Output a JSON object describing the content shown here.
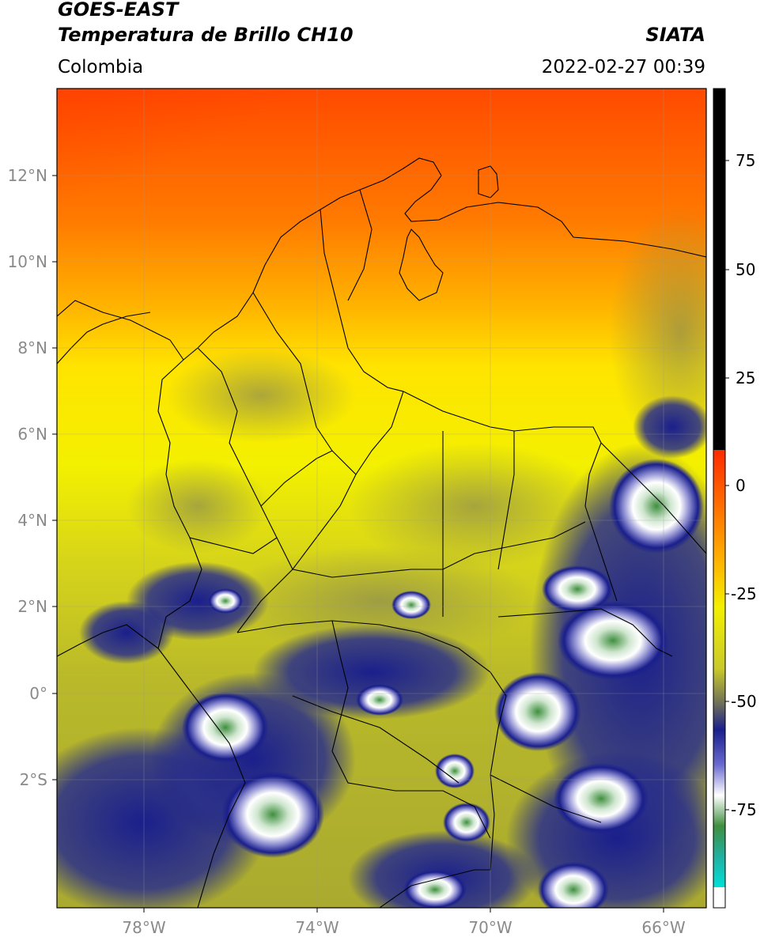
{
  "header": {
    "title_line1": "GOES-EAST",
    "title_line2": "Temperatura de Brillo CH10",
    "region": "Colombia",
    "source": "SIATA",
    "datetime": "2022-02-27 00:39"
  },
  "axes": {
    "lat_labels": [
      "12°N",
      "10°N",
      "8°N",
      "6°N",
      "4°N",
      "2°N",
      "0°",
      "2°S"
    ],
    "lon_labels": [
      "78°W",
      "74°W",
      "70°W",
      "66°W"
    ],
    "lon_range": [
      -80,
      -65
    ],
    "lat_range": [
      -5,
      14
    ],
    "grid": true
  },
  "colorbar": {
    "labels": [
      "75",
      "50",
      "25",
      "0",
      "-25",
      "-50",
      "-75"
    ],
    "colors": {
      "black": "#000000",
      "red": "#ff2a00",
      "orange": "#ff9a00",
      "yellow": "#f3f000",
      "olive": "#b9b92a",
      "gray": "#6e6e5a",
      "navy": "#1a1f8c",
      "white": "#ffffff",
      "green": "#3f8f3f",
      "cyan": "#00e0d8"
    }
  }
}
